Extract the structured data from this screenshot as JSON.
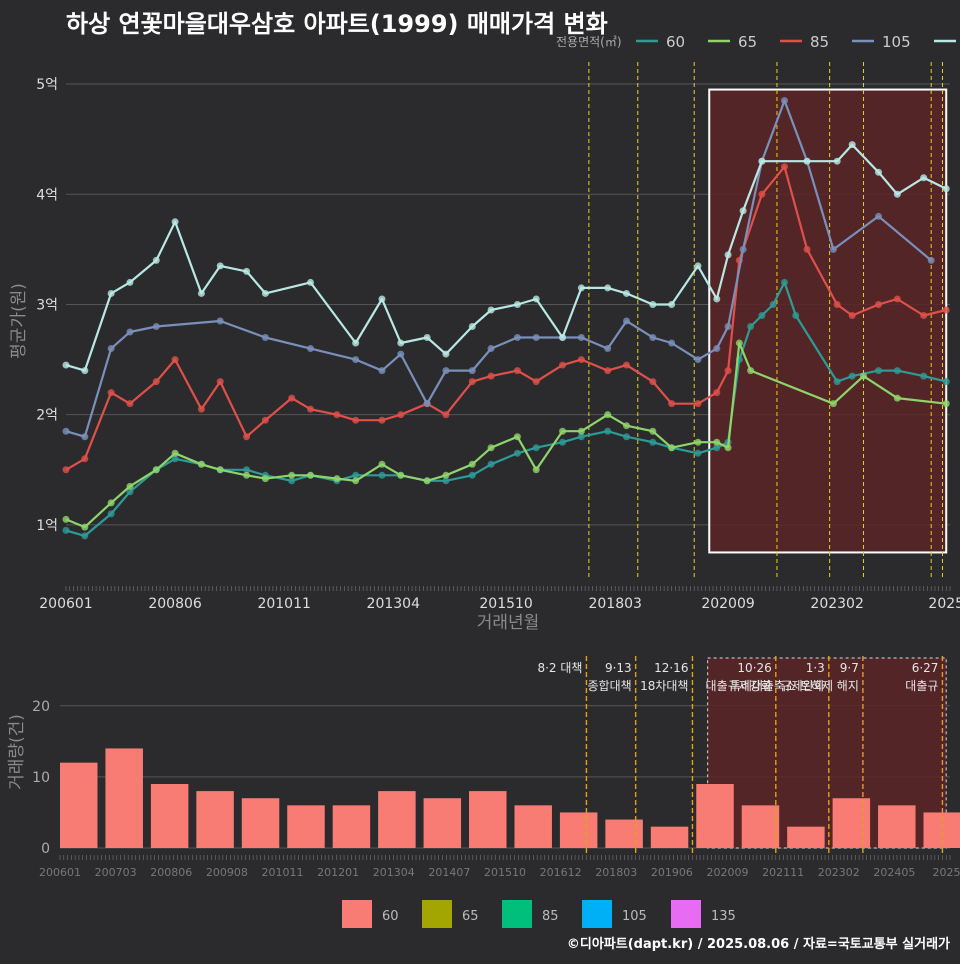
{
  "title": "하상 연꽃마을대우삼호 아파트(1999) 매매가격 변화",
  "credit": "©디아파트(dapt.kr) / 2025.08.06 / 자료=국토교통부 실거래가",
  "colors": {
    "background": "#2b2b2d",
    "grid": "#555555",
    "policy_line": "#e8d020",
    "highlight_fill": "#5a2526",
    "highlight_border": "#ffffff"
  },
  "chart_data": [
    {
      "type": "line",
      "name": "price-chart",
      "xlabel": "거래년월",
      "ylabel": "평균가(원)",
      "legend_title": "전용면적(㎡)",
      "legend_position": "top-right",
      "x_range": [
        "2006-01",
        "2025-08"
      ],
      "ylim": [
        0.5,
        5.2
      ],
      "y_ticks": [
        1,
        2,
        3,
        4,
        5
      ],
      "y_tick_labels": [
        "1억",
        "2억",
        "3억",
        "4억",
        "5억"
      ],
      "x_ticks": [
        "2006-01",
        "2008-06",
        "2010-11",
        "2013-04",
        "2015-10",
        "2018-03",
        "2020-09",
        "2023-02",
        "2025-07"
      ],
      "x_tick_labels": [
        "200601",
        "200806",
        "201011",
        "201304",
        "201510",
        "201803",
        "202009",
        "202302",
        "2025"
      ],
      "grid": true,
      "highlight_range": {
        "x": [
          "2020-04",
          "2025-07"
        ],
        "y": [
          0.75,
          4.95
        ]
      },
      "policy_dates": [
        "2017-08",
        "2018-09",
        "2019-12",
        "2021-10",
        "2022-12",
        "2023-09",
        "2025-03",
        "2025-06"
      ],
      "series": [
        {
          "name": "60",
          "color": "#2d9b96",
          "x": [
            "2006-01",
            "2006-06",
            "2007-01",
            "2007-06",
            "2008-01",
            "2008-06",
            "2009-01",
            "2009-06",
            "2010-01",
            "2010-06",
            "2011-01",
            "2011-06",
            "2012-01",
            "2012-06",
            "2013-01",
            "2013-06",
            "2014-01",
            "2014-06",
            "2015-01",
            "2015-06",
            "2016-01",
            "2016-06",
            "2017-01",
            "2017-06",
            "2018-01",
            "2018-06",
            "2019-01",
            "2019-06",
            "2020-01",
            "2020-06",
            "2020-09",
            "2020-12",
            "2021-03",
            "2021-06",
            "2021-09",
            "2021-12",
            "2022-03",
            "2023-02",
            "2023-06",
            "2024-01",
            "2024-06",
            "2025-01",
            "2025-07"
          ],
          "y": [
            0.95,
            0.9,
            1.1,
            1.3,
            1.5,
            1.6,
            1.55,
            1.5,
            1.5,
            1.45,
            1.4,
            1.45,
            1.4,
            1.45,
            1.45,
            1.45,
            1.4,
            1.4,
            1.45,
            1.55,
            1.65,
            1.7,
            1.75,
            1.8,
            1.85,
            1.8,
            1.75,
            1.7,
            1.65,
            1.7,
            1.75,
            2.5,
            2.8,
            2.9,
            3.0,
            3.2,
            2.9,
            2.3,
            2.35,
            2.4,
            2.4,
            2.35,
            2.3
          ]
        },
        {
          "name": "65",
          "color": "#8fd46a",
          "x": [
            "2006-01",
            "2006-06",
            "2007-01",
            "2007-06",
            "2008-01",
            "2008-06",
            "2009-01",
            "2009-06",
            "2010-01",
            "2010-06",
            "2011-01",
            "2011-06",
            "2012-01",
            "2012-06",
            "2013-01",
            "2013-06",
            "2014-01",
            "2014-06",
            "2015-01",
            "2015-06",
            "2016-01",
            "2016-06",
            "2017-01",
            "2017-06",
            "2018-01",
            "2018-06",
            "2019-01",
            "2019-06",
            "2020-01",
            "2020-06",
            "2020-09",
            "2020-12",
            "2021-03",
            "2023-01",
            "2023-09",
            "2024-06",
            "2025-07"
          ],
          "y": [
            1.05,
            0.98,
            1.2,
            1.35,
            1.5,
            1.65,
            1.55,
            1.5,
            1.45,
            1.42,
            1.45,
            1.45,
            1.42,
            1.4,
            1.55,
            1.45,
            1.4,
            1.45,
            1.55,
            1.7,
            1.8,
            1.5,
            1.85,
            1.85,
            2.0,
            1.9,
            1.85,
            1.7,
            1.75,
            1.75,
            1.7,
            2.65,
            2.4,
            2.1,
            2.35,
            2.15,
            2.1
          ]
        },
        {
          "name": "85",
          "color": "#e0504a",
          "x": [
            "2006-01",
            "2006-06",
            "2007-01",
            "2007-06",
            "2008-01",
            "2008-06",
            "2009-01",
            "2009-06",
            "2010-01",
            "2010-06",
            "2011-01",
            "2011-06",
            "2012-01",
            "2012-06",
            "2013-01",
            "2013-06",
            "2014-01",
            "2014-06",
            "2015-01",
            "2015-06",
            "2016-01",
            "2016-06",
            "2017-01",
            "2017-06",
            "2018-01",
            "2018-06",
            "2019-01",
            "2019-06",
            "2020-01",
            "2020-06",
            "2020-09",
            "2020-12",
            "2021-06",
            "2021-12",
            "2022-06",
            "2023-02",
            "2023-06",
            "2024-01",
            "2024-06",
            "2025-01",
            "2025-07"
          ],
          "y": [
            1.5,
            1.6,
            2.2,
            2.1,
            2.3,
            2.5,
            2.05,
            2.3,
            1.8,
            1.95,
            2.15,
            2.05,
            2.0,
            1.95,
            1.95,
            2.0,
            2.1,
            2.0,
            2.3,
            2.35,
            2.4,
            2.3,
            2.45,
            2.5,
            2.4,
            2.45,
            2.3,
            2.1,
            2.1,
            2.2,
            2.4,
            3.4,
            4.0,
            4.25,
            3.5,
            3.0,
            2.9,
            3.0,
            3.05,
            2.9,
            2.95
          ]
        },
        {
          "name": "105",
          "color": "#7a90ba",
          "x": [
            "2006-01",
            "2006-06",
            "2007-01",
            "2007-06",
            "2008-01",
            "2009-06",
            "2010-06",
            "2011-06",
            "2012-06",
            "2013-01",
            "2013-06",
            "2014-01",
            "2014-06",
            "2015-01",
            "2015-06",
            "2016-01",
            "2016-06",
            "2017-01",
            "2017-06",
            "2018-01",
            "2018-06",
            "2019-01",
            "2019-06",
            "2020-01",
            "2020-06",
            "2020-09",
            "2021-01",
            "2021-06",
            "2021-12",
            "2022-06",
            "2023-01",
            "2024-01",
            "2025-03"
          ],
          "y": [
            1.85,
            1.8,
            2.6,
            2.75,
            2.8,
            2.85,
            2.7,
            2.6,
            2.5,
            2.4,
            2.55,
            2.1,
            2.4,
            2.4,
            2.6,
            2.7,
            2.7,
            2.7,
            2.7,
            2.6,
            2.85,
            2.7,
            2.65,
            2.5,
            2.6,
            2.8,
            3.5,
            4.3,
            4.85,
            4.3,
            3.5,
            3.8,
            3.4
          ]
        },
        {
          "name": "135",
          "color": "#b8e8e4",
          "x": [
            "2006-01",
            "2006-06",
            "2007-01",
            "2007-06",
            "2008-01",
            "2008-06",
            "2009-01",
            "2009-06",
            "2010-01",
            "2010-06",
            "2011-06",
            "2012-06",
            "2013-01",
            "2013-06",
            "2014-01",
            "2014-06",
            "2015-01",
            "2015-06",
            "2016-01",
            "2016-06",
            "2017-01",
            "2017-06",
            "2018-01",
            "2018-06",
            "2019-01",
            "2019-06",
            "2020-01",
            "2020-06",
            "2020-09",
            "2021-01",
            "2021-06",
            "2022-06",
            "2023-02",
            "2023-06",
            "2024-01",
            "2024-06",
            "2025-01",
            "2025-07"
          ],
          "y": [
            2.45,
            2.4,
            3.1,
            3.2,
            3.4,
            3.75,
            3.1,
            3.35,
            3.3,
            3.1,
            3.2,
            2.65,
            3.05,
            2.65,
            2.7,
            2.55,
            2.8,
            2.95,
            3.0,
            3.05,
            2.7,
            3.15,
            3.15,
            3.1,
            3.0,
            3.0,
            3.35,
            3.05,
            3.45,
            3.85,
            4.3,
            4.3,
            4.3,
            4.45,
            4.2,
            4.0,
            4.15,
            4.05
          ]
        }
      ]
    },
    {
      "type": "bar",
      "name": "volume-chart",
      "ylabel": "거래량(건)",
      "legend_position": "bottom",
      "ylim": [
        0,
        27
      ],
      "y_ticks": [
        0,
        10,
        20
      ],
      "x_tick_labels": [
        "200601",
        "200703",
        "200806",
        "200908",
        "201011",
        "201201",
        "201304",
        "201407",
        "201510",
        "201612",
        "201803",
        "201906",
        "202009",
        "202111",
        "202302",
        "202405",
        "20250"
      ],
      "highlight_range": {
        "x": [
          "2020-04",
          "2025-07"
        ]
      },
      "annotations": [
        {
          "date": "2017-08",
          "line1": "8·2 대책",
          "line2": ""
        },
        {
          "date": "2018-09",
          "line1": "9·13",
          "line2": "종합대책"
        },
        {
          "date": "2019-12",
          "line1": "12·16",
          "line2": "18차대책"
        },
        {
          "date": "2021-10",
          "line1": "10·26",
          "line2": "대출규제강화"
        },
        {
          "date": "2022-12",
          "line1": "1·3",
          "line2": "규제완화"
        },
        {
          "date": "2023-09",
          "line1": "9·7",
          "line2": "특례대출축소 토허제 해지"
        },
        {
          "date": "2025-06",
          "line1": "6·27",
          "line2": "대출규"
        }
      ],
      "series": [
        {
          "name": "60",
          "color": "#f87c74",
          "x": [
            "2006",
            "2007",
            "2008",
            "2009",
            "2010",
            "2011",
            "2012",
            "2013",
            "2014",
            "2015",
            "2016",
            "2017",
            "2018",
            "2019",
            "2020",
            "2021",
            "2022",
            "2023",
            "2024",
            "2025"
          ],
          "values": [
            12,
            14,
            9,
            8,
            7,
            6,
            6,
            8,
            7,
            8,
            6,
            5,
            4,
            3,
            9,
            6,
            3,
            7,
            6,
            5
          ]
        },
        {
          "name": "65",
          "color": "#a3a500",
          "x": [],
          "values": []
        },
        {
          "name": "85",
          "color": "#00bf7d",
          "x": [],
          "values": []
        },
        {
          "name": "105",
          "color": "#00b0f6",
          "x": [],
          "values": []
        },
        {
          "name": "135",
          "color": "#e76bf3",
          "x": [],
          "values": []
        }
      ]
    }
  ]
}
